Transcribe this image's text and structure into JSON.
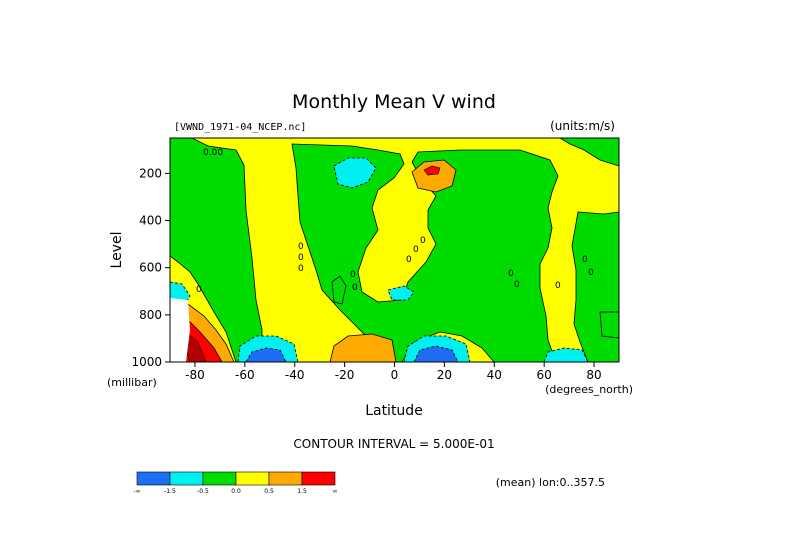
{
  "chart_data": {
    "type": "contour",
    "title": "Monthly Mean V wind",
    "dataset_label": "[VWND_1971-04_NCEP.nc]",
    "units_label": "(units:m/s)",
    "xlabel": "Latitude",
    "x_unit_label": "(degrees_north)",
    "ylabel": "Level",
    "y_unit_label": "(millibar)",
    "xlim": [
      -90,
      90
    ],
    "ylim": [
      1000,
      50
    ],
    "x_ticks": [
      -80,
      -60,
      -40,
      -20,
      0,
      20,
      40,
      60,
      80
    ],
    "y_ticks": [
      200,
      400,
      600,
      800,
      1000
    ],
    "contour_interval_text": "CONTOUR INTERVAL = 5.000E-01",
    "footer_note": "(mean) lon:0..357.5",
    "contour_labels": [
      "0.00",
      "0",
      "0",
      "0",
      "0",
      "0",
      "0",
      "0",
      "0",
      "0",
      "0",
      "0",
      "0",
      "0",
      "0"
    ],
    "legend": {
      "bins": [
        {
          "color": "#1e6ef5"
        },
        {
          "color": "#00f0f0"
        },
        {
          "color": "#00dc00"
        },
        {
          "color": "#ffff00"
        },
        {
          "color": "#ffaa00"
        },
        {
          "color": "#ff0000"
        }
      ],
      "labels": [
        "-∞",
        "-1.5",
        "-0.5",
        "0.0",
        "0.5",
        "1.5",
        "∞"
      ]
    }
  }
}
